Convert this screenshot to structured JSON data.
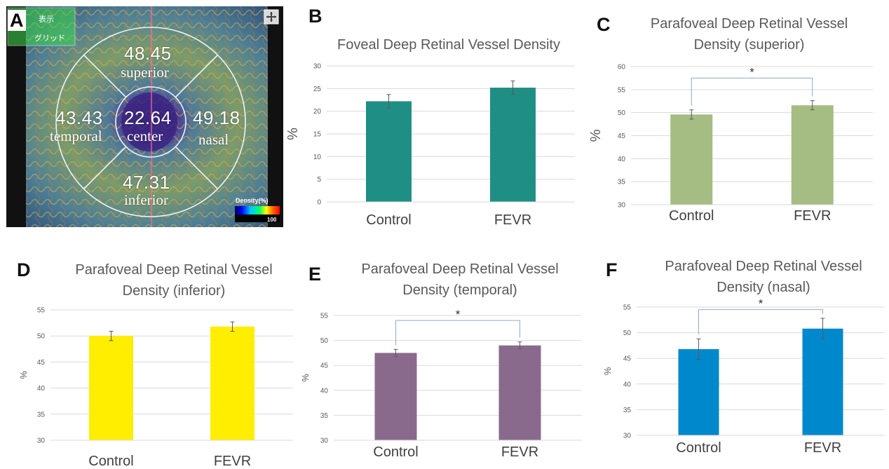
{
  "panels": {
    "a": "A",
    "b": "B",
    "c": "C",
    "d": "D",
    "e": "E",
    "f": "F"
  },
  "map": {
    "sectors": {
      "superior": {
        "value": "48.45",
        "label": "superior"
      },
      "temporal": {
        "value": "43.43",
        "label": "temporal"
      },
      "center": {
        "value": "22.64",
        "label": "center"
      },
      "nasal": {
        "value": "49.18",
        "label": "nasal"
      },
      "inferior": {
        "value": "47.31",
        "label": "inferior"
      }
    },
    "legend_title": "Density(%)",
    "legend_max": "100",
    "corner_text_top": "表示",
    "corner_text_bottom": "グリッド",
    "colors": {
      "background": "#2a4a6a",
      "ring": "#e8eef5",
      "center": "#3a2a7a"
    }
  },
  "chart_data": [
    {
      "id": "b",
      "type": "bar",
      "title": "Foveal Deep Retinal Vessel Density",
      "categories": [
        "Control",
        "FEVR"
      ],
      "values": [
        22.2,
        25.2
      ],
      "errors": [
        1.5,
        1.5
      ],
      "ylabel": "%",
      "ylim": [
        0,
        30
      ],
      "yticks": [
        0,
        5,
        10,
        15,
        20,
        25,
        30
      ],
      "color": "#1f8f85",
      "significance": null,
      "grid": true
    },
    {
      "id": "c",
      "type": "bar",
      "title": "Parafoveal Deep Retinal Vessel Density (superior)",
      "categories": [
        "Control",
        "FEVR"
      ],
      "values": [
        49.6,
        51.6
      ],
      "errors": [
        1.0,
        1.0
      ],
      "ylabel": "%",
      "ylim": [
        30,
        60
      ],
      "yticks": [
        30,
        35,
        40,
        45,
        50,
        55,
        60
      ],
      "color": "#a5bd82",
      "significance": {
        "symbol": "*",
        "level": 57.5,
        "from": 0,
        "to": 1
      },
      "grid": true
    },
    {
      "id": "d",
      "type": "bar",
      "title": "Parafoveal Deep Retinal Vessel Density (inferior)",
      "categories": [
        "Control",
        "FEVR"
      ],
      "values": [
        50.0,
        51.8
      ],
      "errors": [
        0.9,
        0.9
      ],
      "ylabel": "%",
      "ylim": [
        30,
        55
      ],
      "yticks": [
        30,
        35,
        40,
        45,
        50,
        55
      ],
      "color": "#ffee00",
      "significance": null,
      "grid": true
    },
    {
      "id": "e",
      "type": "bar",
      "title": "Parafoveal Deep Retinal Vessel Density (temporal)",
      "categories": [
        "Control",
        "FEVR"
      ],
      "values": [
        47.5,
        49.0
      ],
      "errors": [
        0.7,
        0.7
      ],
      "ylabel": "%",
      "ylim": [
        30,
        55
      ],
      "yticks": [
        30,
        35,
        40,
        45,
        50,
        55
      ],
      "color": "#8a6a8c",
      "significance": {
        "symbol": "*",
        "level": 54,
        "from": 0,
        "to": 1
      },
      "grid": true
    },
    {
      "id": "f",
      "type": "bar",
      "title": "Parafoveal Deep Retinal Vessel Density (nasal)",
      "categories": [
        "Control",
        "FEVR"
      ],
      "values": [
        46.8,
        50.8
      ],
      "errors": [
        2.0,
        2.0
      ],
      "ylabel": "%",
      "ylim": [
        30,
        55
      ],
      "yticks": [
        30,
        35,
        40,
        45,
        50,
        55
      ],
      "color": "#0088cc",
      "significance": {
        "symbol": "*",
        "level": 54.5,
        "from": 0,
        "to": 1
      },
      "grid": true
    }
  ]
}
